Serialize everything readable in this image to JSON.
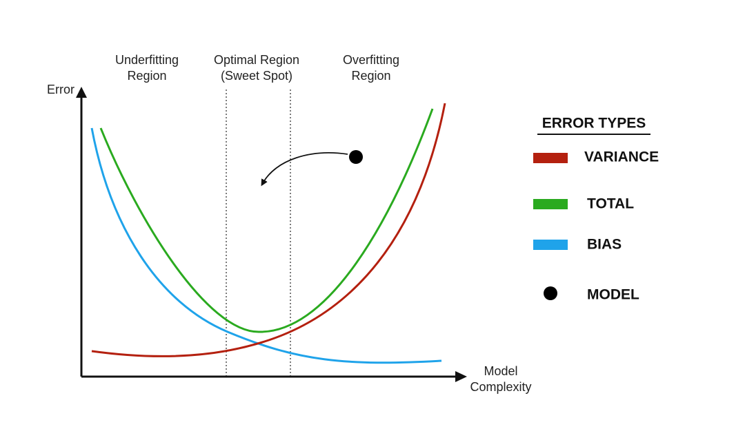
{
  "axes": {
    "y_label": "Error",
    "x_label": [
      "Model",
      "Complexity"
    ]
  },
  "regions": [
    {
      "lines": [
        "Underfitting",
        "Region"
      ]
    },
    {
      "lines": [
        "Optimal Region",
        "(Sweet Spot)"
      ]
    },
    {
      "lines": [
        "Overfitting",
        "Region"
      ]
    }
  ],
  "legend": {
    "title": "ERROR TYPES",
    "items": [
      "VARIANCE",
      "TOTAL",
      "BIAS",
      "MODEL"
    ]
  }
}
